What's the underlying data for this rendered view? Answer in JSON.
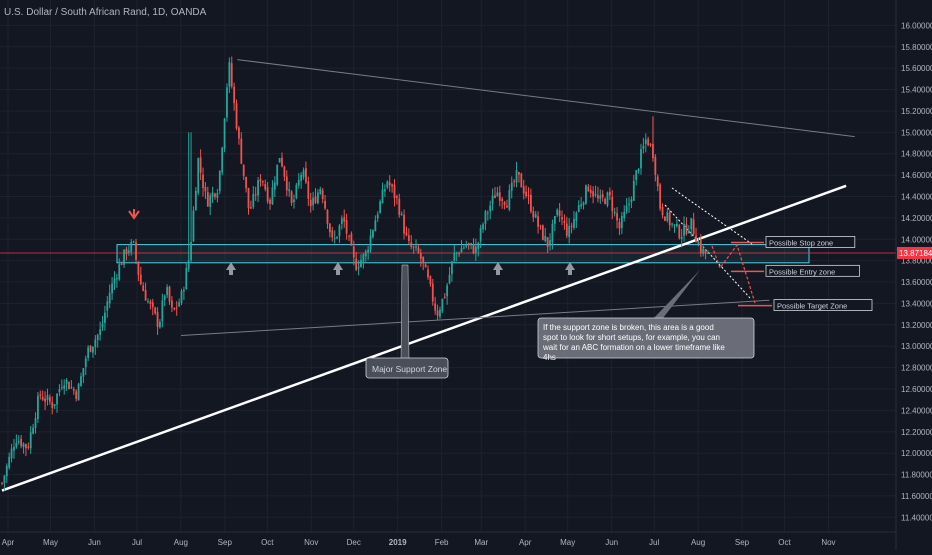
{
  "chart_data": {
    "type": "candlestick",
    "title": "U.S. Dollar / South African Rand, 1D, OANDA",
    "colors": {
      "background": "#131722",
      "up": "#26a69a",
      "down": "#ef5350",
      "grid": "#1e222d",
      "axis_text": "#b2b5be",
      "price_line": "#f23645",
      "support_zone": "#4dd0e1",
      "trendline": "#ffffff",
      "channel": "#787b86"
    },
    "y_axis": {
      "min": 11.3,
      "max": 16.2,
      "ticks": [
        "11.40000",
        "11.60000",
        "11.80000",
        "12.00000",
        "12.20000",
        "12.40000",
        "12.60000",
        "12.80000",
        "13.00000",
        "13.20000",
        "13.40000",
        "13.60000",
        "13.80000",
        "14.00000",
        "14.20000",
        "14.40000",
        "14.60000",
        "14.80000",
        "15.00000",
        "15.20000",
        "15.40000",
        "15.60000",
        "15.80000",
        "16.00000"
      ]
    },
    "x_axis": {
      "ticks": [
        "Apr",
        "May",
        "Jun",
        "Jul",
        "Aug",
        "Sep",
        "Oct",
        "Nov",
        "Dec",
        "2019",
        "Feb",
        "Mar",
        "Apr",
        "May",
        "Jun",
        "Jul",
        "Aug",
        "Sep",
        "Oct",
        "Nov"
      ]
    },
    "current_price": {
      "label": "13.87184",
      "value": 13.87184
    },
    "anchors": [
      {
        "d": 0,
        "v": 11.72
      },
      {
        "d": 8,
        "v": 12.15
      },
      {
        "d": 15,
        "v": 12.05
      },
      {
        "d": 22,
        "v": 12.55
      },
      {
        "d": 30,
        "v": 12.45
      },
      {
        "d": 36,
        "v": 12.7
      },
      {
        "d": 44,
        "v": 12.55
      },
      {
        "d": 50,
        "v": 12.95
      },
      {
        "d": 58,
        "v": 13.15
      },
      {
        "d": 63,
        "v": 13.5
      },
      {
        "d": 68,
        "v": 13.72
      },
      {
        "d": 73,
        "v": 13.9
      },
      {
        "d": 77,
        "v": 13.95
      },
      {
        "d": 81,
        "v": 13.6
      },
      {
        "d": 86,
        "v": 13.4
      },
      {
        "d": 92,
        "v": 13.2
      },
      {
        "d": 96,
        "v": 13.55
      },
      {
        "d": 100,
        "v": 13.3
      },
      {
        "d": 105,
        "v": 13.45
      },
      {
        "d": 110,
        "v": 13.85
      },
      {
        "d": 115,
        "v": 14.75
      },
      {
        "d": 120,
        "v": 14.35
      },
      {
        "d": 127,
        "v": 14.5
      },
      {
        "d": 133,
        "v": 15.65
      },
      {
        "d": 139,
        "v": 14.9
      },
      {
        "d": 145,
        "v": 14.25
      },
      {
        "d": 152,
        "v": 14.6
      },
      {
        "d": 157,
        "v": 14.35
      },
      {
        "d": 163,
        "v": 14.8
      },
      {
        "d": 170,
        "v": 14.3
      },
      {
        "d": 176,
        "v": 14.65
      },
      {
        "d": 181,
        "v": 14.3
      },
      {
        "d": 187,
        "v": 14.5
      },
      {
        "d": 194,
        "v": 13.95
      },
      {
        "d": 200,
        "v": 14.2
      },
      {
        "d": 207,
        "v": 13.75
      },
      {
        "d": 213,
        "v": 13.85
      },
      {
        "d": 220,
        "v": 14.25
      },
      {
        "d": 226,
        "v": 14.55
      },
      {
        "d": 232,
        "v": 14.35
      },
      {
        "d": 238,
        "v": 13.95
      },
      {
        "d": 245,
        "v": 13.85
      },
      {
        "d": 250,
        "v": 13.6
      },
      {
        "d": 255,
        "v": 13.3
      },
      {
        "d": 260,
        "v": 13.5
      },
      {
        "d": 265,
        "v": 13.85
      },
      {
        "d": 272,
        "v": 13.95
      },
      {
        "d": 278,
        "v": 13.9
      },
      {
        "d": 283,
        "v": 14.2
      },
      {
        "d": 290,
        "v": 14.45
      },
      {
        "d": 296,
        "v": 14.35
      },
      {
        "d": 302,
        "v": 14.6
      },
      {
        "d": 308,
        "v": 14.4
      },
      {
        "d": 315,
        "v": 14.1
      },
      {
        "d": 320,
        "v": 13.95
      },
      {
        "d": 326,
        "v": 14.25
      },
      {
        "d": 332,
        "v": 14.05
      },
      {
        "d": 338,
        "v": 14.3
      },
      {
        "d": 344,
        "v": 14.5
      },
      {
        "d": 350,
        "v": 14.35
      },
      {
        "d": 356,
        "v": 14.4
      },
      {
        "d": 362,
        "v": 14.1
      },
      {
        "d": 368,
        "v": 14.35
      },
      {
        "d": 374,
        "v": 14.75
      },
      {
        "d": 378,
        "v": 14.95
      },
      {
        "d": 382,
        "v": 14.8
      },
      {
        "d": 386,
        "v": 14.3
      },
      {
        "d": 392,
        "v": 14.15
      },
      {
        "d": 398,
        "v": 14.05
      },
      {
        "d": 404,
        "v": 14.15
      },
      {
        "d": 410,
        "v": 13.9
      },
      {
        "d": 414,
        "v": 13.85
      }
    ],
    "spikes": [
      {
        "d": 133,
        "high": 15.7
      },
      {
        "d": 382,
        "high": 15.15
      },
      {
        "d": 110,
        "high": 15.0
      }
    ],
    "lines": {
      "support_zone": {
        "top": 13.95,
        "bottom": 13.78
      },
      "major_trendline": [
        {
          "d": 0,
          "v": 11.65
        },
        {
          "d": 495,
          "v": 14.5
        }
      ],
      "upper_channel": [
        {
          "d": 138,
          "v": 15.68
        },
        {
          "d": 500,
          "v": 14.96
        }
      ],
      "lower_channel": [
        {
          "d": 105,
          "v": 13.1
        },
        {
          "d": 450,
          "v": 13.43
        }
      ]
    },
    "zones": [
      {
        "label": "Possible Stop zone",
        "value": 13.97
      },
      {
        "label": "Possible Entry zone",
        "value": 13.7
      },
      {
        "label": "Possible Target Zone",
        "value": 13.38
      }
    ],
    "annotations": {
      "support_callout": "Major Support Zone",
      "break_callout": "If the support zone is broken, this area is a good spot to look for short setups, for example, you can wait for an ABC formation on a lower timeframe like 4hs"
    },
    "up_arrow_days": [
      137,
      204,
      300,
      342
    ],
    "down_arrow_day": 78
  }
}
